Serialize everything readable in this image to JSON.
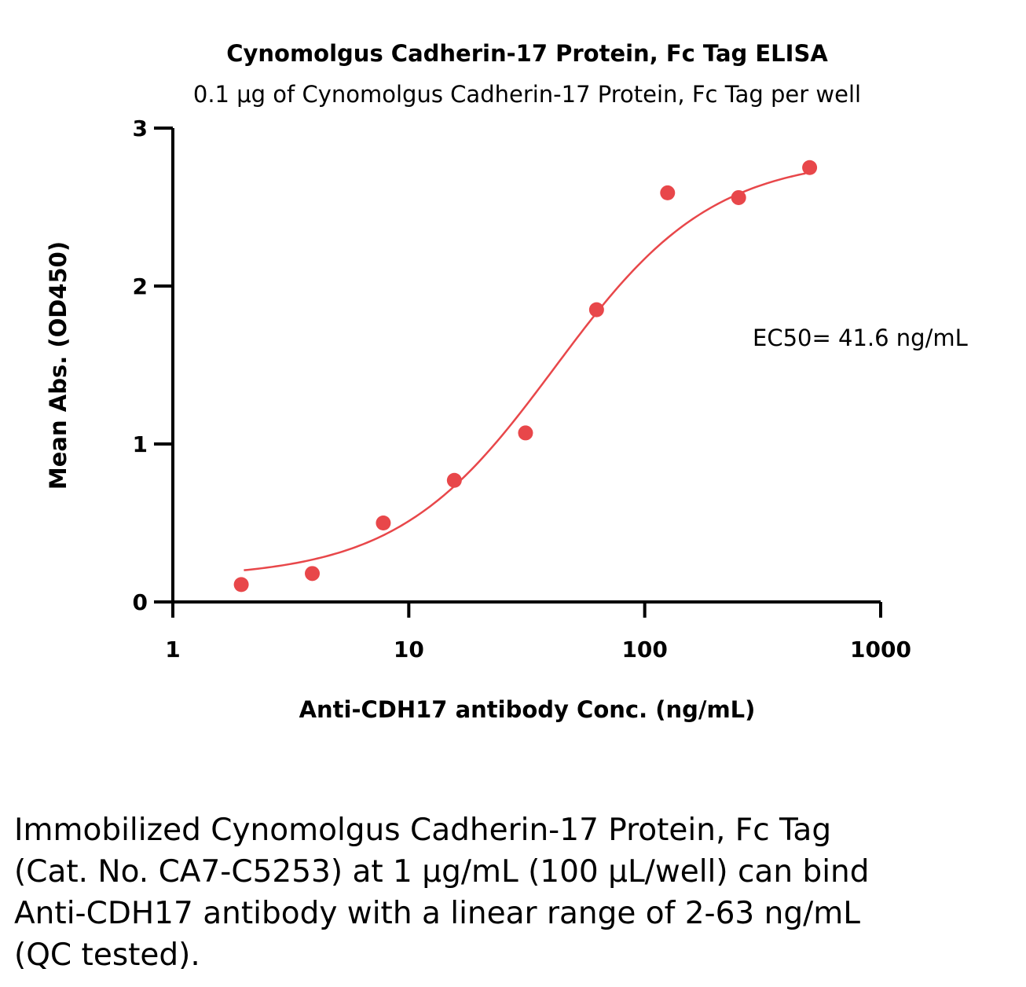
{
  "chart_data": {
    "type": "scatter",
    "title": "Cynomolgus Cadherin-17 Protein, Fc Tag ELISA",
    "subtitle": "0.1 μg of Cynomolgus Cadherin-17 Protein, Fc Tag per well",
    "xlabel": "Anti-CDH17 antibody Conc. (ng/mL)",
    "ylabel": "Mean Abs. (OD450)",
    "x_scale": "log",
    "xlim": [
      1,
      1000
    ],
    "ylim": [
      0,
      3
    ],
    "x_ticks": [
      "1",
      "10",
      "100",
      "1000"
    ],
    "y_ticks": [
      "0",
      "1",
      "2",
      "3"
    ],
    "grid": false,
    "legend": "none",
    "color": "#e8474a",
    "series": [
      {
        "x": [
          1.95,
          3.9,
          7.8,
          15.6,
          31.25,
          62.5,
          125,
          250,
          500
        ],
        "y": [
          0.11,
          0.18,
          0.5,
          0.77,
          1.07,
          1.85,
          2.59,
          2.56,
          2.75
        ]
      }
    ],
    "fit": {
      "model": "4PL",
      "bottom": 0.15,
      "top": 2.82,
      "ec50": 41.6,
      "hill": 1.3,
      "x_range": [
        2,
        480
      ]
    },
    "annotation": "EC50= 41.6 ng/mL"
  },
  "caption": "Immobilized Cynomolgus Cadherin-17 Protein, Fc Tag (Cat. No. CA7-C5253) at 1 μg/mL (100 μL/well) can bind Anti-CDH17 antibody with a linear range of 2-63 ng/mL (QC tested)."
}
